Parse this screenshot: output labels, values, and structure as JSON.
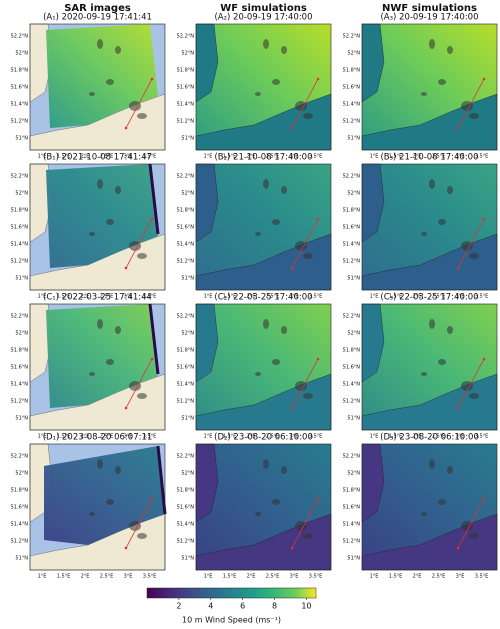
{
  "column_titles": [
    "SAR images",
    "WF simulations",
    "NWF simulations"
  ],
  "panels": [
    [
      "(A₁) 2020-09-19 17:41:41",
      "(A₂) 20-09-19 17:40:00",
      "(A₃) 20-09-19 17:40:00"
    ],
    [
      "(B₁) 2021-10-08 17:41:47",
      "(B₂) 21-10-08 17:40:00",
      "(B₃) 21-10-08 17:40:00"
    ],
    [
      "(C₁) 2022-03-25 17:41:44",
      "(C₂) 22-03-25 17:40:00",
      "(C₃) 22-03-25 17:40:00"
    ],
    [
      "(D₁) 2023-08-20 06:07:11",
      "(D₂) 23-08-20 06:10:00",
      "(D₃) 23-08-20 06:10:00"
    ]
  ],
  "lat_labels": [
    "52.2°N",
    "52°N",
    "51.8°N",
    "51.6°N",
    "51.4°N",
    "51.2°N",
    "51°N"
  ],
  "lon_labels": [
    "1°E",
    "1.5°E",
    "2°E",
    "2.5°E",
    "3°E",
    "3.5°E"
  ],
  "colorbar": {
    "label": "10 m Wind Speed (ms⁻¹)",
    "lim": [
      0,
      10.6
    ],
    "ticks": [
      2,
      4,
      6,
      8,
      10
    ]
  }
}
